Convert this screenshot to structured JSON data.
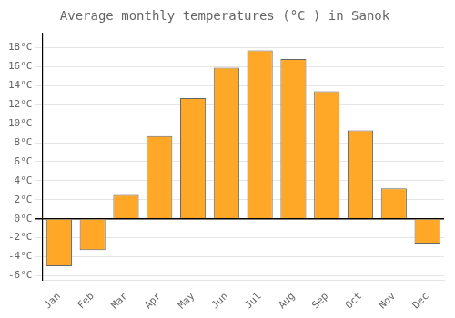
{
  "chart_data": {
    "type": "bar",
    "title": "Average monthly temperatures (°C ) in Sanok",
    "categories": [
      "Jan",
      "Feb",
      "Mar",
      "Apr",
      "May",
      "Jun",
      "Jul",
      "Aug",
      "Sep",
      "Oct",
      "Nov",
      "Dec"
    ],
    "values": [
      -5.0,
      -3.3,
      2.5,
      8.7,
      12.7,
      15.9,
      17.7,
      16.8,
      13.4,
      9.3,
      3.2,
      -2.7
    ],
    "color": "#FFA726",
    "ylim": [
      -6.5,
      19.5
    ],
    "yticks": [
      {
        "value": -6,
        "label": "-6°C"
      },
      {
        "value": -4,
        "label": "-4°C"
      },
      {
        "value": -2,
        "label": "-2°C"
      },
      {
        "value": 0,
        "label": "0°C"
      },
      {
        "value": 2,
        "label": "2°C"
      },
      {
        "value": 4,
        "label": "4°C"
      },
      {
        "value": 6,
        "label": "6°C"
      },
      {
        "value": 8,
        "label": "8°C"
      },
      {
        "value": 10,
        "label": "10°C"
      },
      {
        "value": 12,
        "label": "12°C"
      },
      {
        "value": 14,
        "label": "14°C"
      },
      {
        "value": 16,
        "label": "16°C"
      },
      {
        "value": 18,
        "label": "18°C"
      }
    ],
    "grid": true
  }
}
